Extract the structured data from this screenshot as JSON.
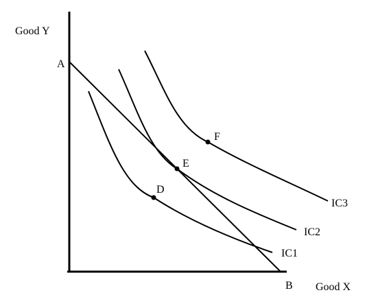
{
  "axes": {
    "y_label": "Good Y",
    "x_label": "Good X"
  },
  "budget_line": {
    "start_label": "A",
    "end_label": "B"
  },
  "curves": [
    "IC1",
    "IC2",
    "IC3"
  ],
  "points": [
    "D",
    "E",
    "F"
  ]
}
